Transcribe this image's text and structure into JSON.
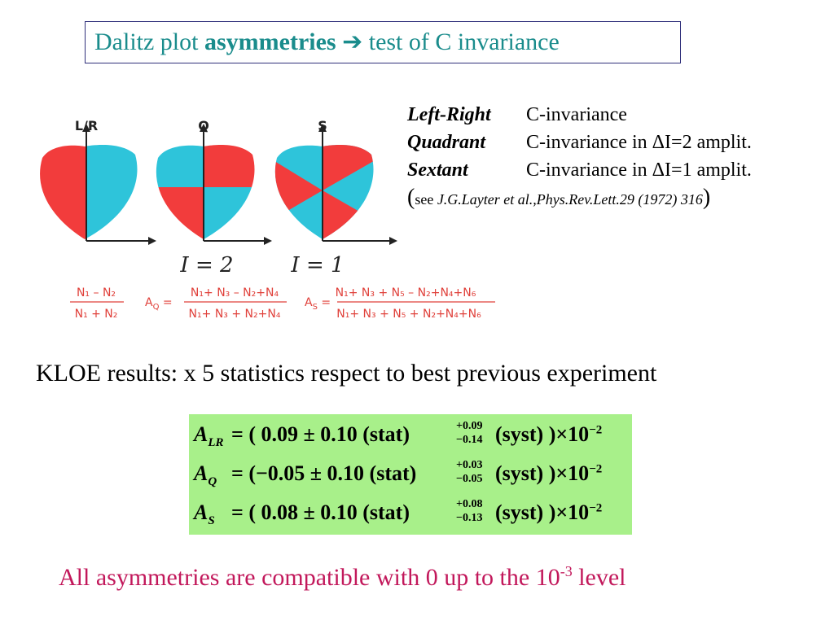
{
  "title": {
    "part1": "Dalitz plot ",
    "bold": "asymmetries",
    "arrow": "➔",
    "part2": " test of C invariance"
  },
  "figure": {
    "labels": {
      "lr": "L/R",
      "q": "Q",
      "s": "S"
    },
    "isospin": {
      "i2": "I = 2",
      "i1": "I = 1"
    },
    "colors": {
      "red": "#f23c3c",
      "cyan": "#2ec4da"
    }
  },
  "formulas": {
    "lr": {
      "num": "N₁ – N₂",
      "den": "N₁ + N₂"
    },
    "q": {
      "lhs": "A",
      "lhs_sub": "Q",
      "num": "N₁+ N₃ – N₂+N₄",
      "den": "N₁+ N₃ + N₂+N₄"
    },
    "s": {
      "lhs": "A",
      "lhs_sub": "S",
      "num": "N₁+ N₃ + N₅ – N₂+N₄+N₆",
      "den": "N₁+ N₃ + N₅ + N₂+N₄+N₆"
    }
  },
  "definitions": [
    {
      "term": "Left-Right",
      "desc": "C-invariance"
    },
    {
      "term": "Quadrant",
      "desc": "C-invariance in ΔI=2 amplit."
    },
    {
      "term": "Sextant",
      "desc": "C-invariance in ΔI=1 amplit."
    }
  ],
  "reference": {
    "open": "(",
    "see": "see ",
    "citation": "J.G.Layter et al.,Phys.Rev.Lett.29 (1972) 316",
    "close": ")"
  },
  "kloe_line": "KLOE results: x 5 statistics respect to best previous experiment",
  "results": [
    {
      "sym": "A",
      "sub": "LR",
      "value": "= (   0.09 ± 0.10 (stat)",
      "sup": "+0.09",
      "subval": "−0.14",
      "tail": "(syst) )×10",
      "exp": "−2"
    },
    {
      "sym": "A",
      "sub": "Q",
      "value": "= (−0.05 ± 0.10 (stat)",
      "sup": "+0.03",
      "subval": "−0.05",
      "tail": "(syst) )×10",
      "exp": "−2"
    },
    {
      "sym": "A",
      "sub": "S",
      "value": "= (   0.08 ± 0.10 (stat)",
      "sup": "+0.08",
      "subval": "−0.13",
      "tail": "(syst) )×10",
      "exp": "−2"
    }
  ],
  "conclusion": {
    "text": "All asymmetries are compatible with 0 up to the 10",
    "exp": "-3",
    "tail": " level"
  }
}
